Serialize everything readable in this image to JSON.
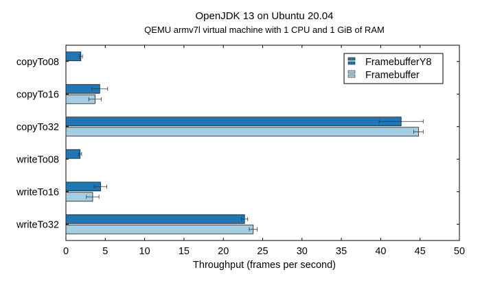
{
  "chart_data": {
    "type": "bar",
    "orientation": "horizontal",
    "title": "OpenJDK 13 on Ubuntu 20.04",
    "subtitle": "QEMU armv7l virtual machine with 1 CPU and 1 GiB of RAM",
    "xlabel": "Throughput (frames per second)",
    "ylabel": "",
    "xlim": [
      0,
      50
    ],
    "xticks": [
      "0",
      "5",
      "10",
      "15",
      "20",
      "25",
      "30",
      "35",
      "40",
      "45",
      "50"
    ],
    "categories": [
      "copyTo08",
      "copyTo16",
      "copyTo32",
      "writeTo08",
      "writeTo16",
      "writeTo32"
    ],
    "series": [
      {
        "name": "FramebufferY8",
        "color": "#1f78b4",
        "values": [
          1.9,
          4.3,
          42.6,
          1.8,
          4.4,
          22.7
        ],
        "errors": [
          0.2,
          1.0,
          2.8,
          0.2,
          0.8,
          0.4
        ]
      },
      {
        "name": "Framebuffer",
        "color": "#a6cee3",
        "values": [
          null,
          3.7,
          44.8,
          null,
          3.4,
          23.8
        ],
        "errors": [
          null,
          0.8,
          0.6,
          null,
          0.8,
          0.5
        ]
      }
    ],
    "legend_position": "top-right",
    "grid": false
  }
}
